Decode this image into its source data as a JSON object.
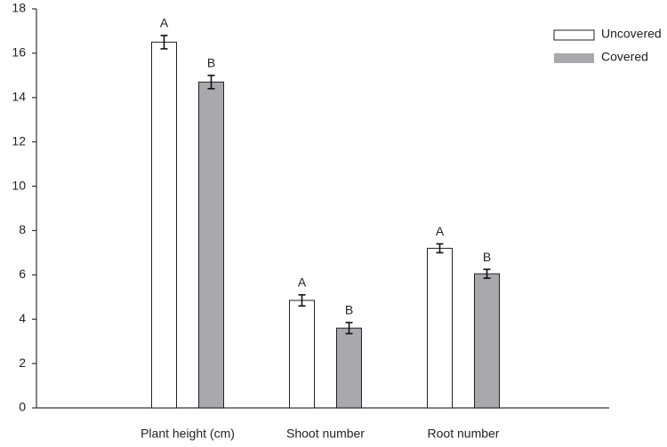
{
  "chart_data": {
    "type": "bar",
    "categories": [
      "Plant height (cm)",
      "Shoot number",
      "Root number"
    ],
    "series": [
      {
        "name": "Uncovered",
        "color": "#ffffff",
        "values": [
          16.5,
          4.85,
          7.2
        ],
        "errors": [
          0.3,
          0.25,
          0.2
        ],
        "letters": [
          "A",
          "A",
          "A"
        ]
      },
      {
        "name": "Covered",
        "color": "#a8a8ad",
        "values": [
          14.7,
          3.6,
          6.05
        ],
        "errors": [
          0.3,
          0.25,
          0.2
        ],
        "letters": [
          "B",
          "B",
          "B"
        ]
      }
    ],
    "ylim": [
      0,
      18
    ],
    "yticks": [
      0,
      2,
      4,
      6,
      8,
      10,
      12,
      14,
      16,
      18
    ],
    "grid": false,
    "legend": "top-right"
  }
}
